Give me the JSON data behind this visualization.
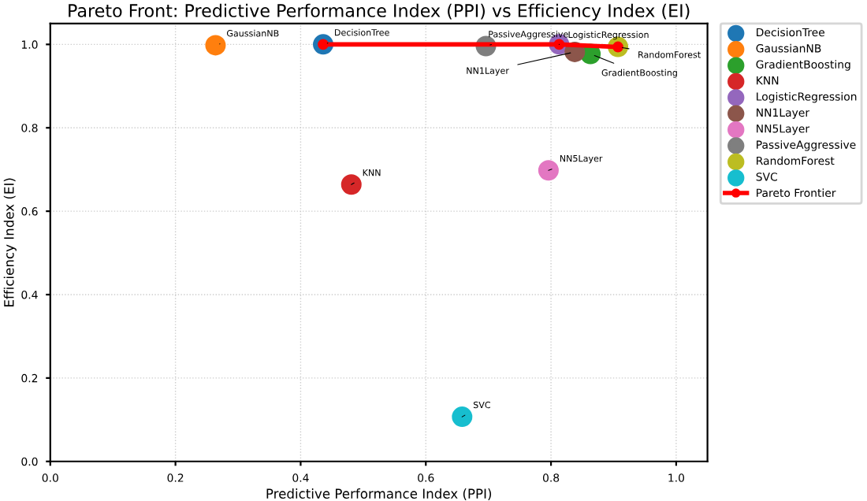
{
  "chart_data": {
    "type": "scatter",
    "title": "Pareto Front: Predictive Performance Index (PPI) vs Efficiency Index (EI)",
    "xlabel": "Predictive Performance Index (PPI)",
    "ylabel": "Efficiency Index (EI)",
    "series": [
      {
        "name": "DecisionTree",
        "color": "#1f77b4",
        "x": [
          0.436
        ],
        "values": [
          1.0
        ]
      },
      {
        "name": "GaussianNB",
        "color": "#ff7f0e",
        "x": [
          0.264
        ],
        "values": [
          0.998
        ]
      },
      {
        "name": "GradientBoosting",
        "color": "#2ca02c",
        "x": [
          0.863
        ],
        "values": [
          0.977
        ]
      },
      {
        "name": "KNN",
        "color": "#d62728",
        "x": [
          0.481
        ],
        "values": [
          0.664
        ]
      },
      {
        "name": "LogisticRegression",
        "color": "#9467bd",
        "x": [
          0.813
        ],
        "values": [
          1.0
        ]
      },
      {
        "name": "NN1Layer",
        "color": "#8c564b",
        "x": [
          0.838
        ],
        "values": [
          0.982
        ]
      },
      {
        "name": "NN5Layer",
        "color": "#e377c2",
        "x": [
          0.796
        ],
        "values": [
          0.698
        ]
      },
      {
        "name": "PassiveAggressive",
        "color": "#7f7f7f",
        "x": [
          0.696
        ],
        "values": [
          0.996
        ]
      },
      {
        "name": "RandomForest",
        "color": "#bcbd22",
        "x": [
          0.907
        ],
        "values": [
          0.994
        ]
      },
      {
        "name": "SVC",
        "color": "#17becf",
        "x": [
          0.658
        ],
        "values": [
          0.107
        ]
      },
      {
        "name": "Pareto Frontier",
        "type": "line",
        "color": "#ff0000",
        "marker": "circle",
        "x": [
          0.436,
          0.813,
          0.907
        ],
        "values": [
          1.0,
          1.0,
          0.994
        ]
      }
    ],
    "annotations": [
      {
        "text": "DecisionTree",
        "x": 0.436,
        "y": 1.0
      },
      {
        "text": "GaussianNB",
        "x": 0.264,
        "y": 0.998
      },
      {
        "text": "GradientBoosting",
        "x": 0.863,
        "y": 0.977
      },
      {
        "text": "KNN",
        "x": 0.481,
        "y": 0.664
      },
      {
        "text": "LogisticRegression",
        "x": 0.813,
        "y": 1.0
      },
      {
        "text": "NN1Layer",
        "x": 0.838,
        "y": 0.982
      },
      {
        "text": "NN5Layer",
        "x": 0.796,
        "y": 0.698
      },
      {
        "text": "PassiveAggressive",
        "x": 0.696,
        "y": 0.996
      },
      {
        "text": "RandomForest",
        "x": 0.907,
        "y": 0.994
      },
      {
        "text": "SVC",
        "x": 0.658,
        "y": 0.107
      }
    ],
    "xlim": [
      0,
      1.05
    ],
    "ylim": [
      0,
      1.05
    ],
    "xticks": [
      {
        "value": 0,
        "label": "0.0"
      },
      0.2,
      0.4,
      0.6,
      0.8,
      {
        "value": 1,
        "label": "1.0"
      }
    ],
    "yticks": [
      {
        "value": 0,
        "label": "0.0"
      },
      0.2,
      0.4,
      0.6,
      0.8,
      {
        "value": 1,
        "label": "1.0"
      }
    ],
    "grid": true,
    "legend": "right",
    "marker": "circle"
  }
}
